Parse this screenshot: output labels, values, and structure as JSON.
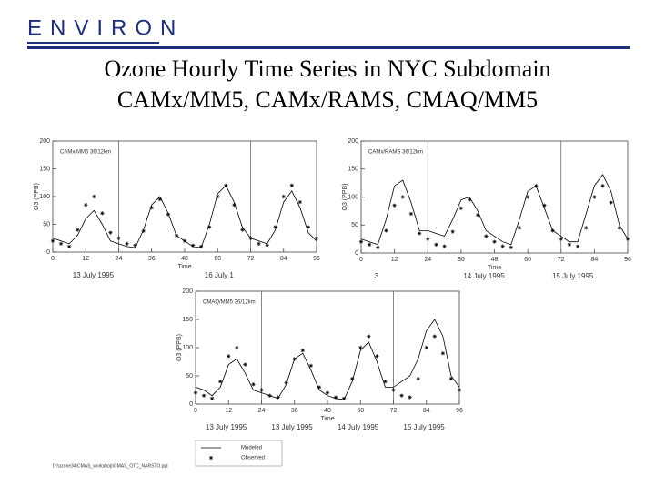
{
  "header": {
    "logo": "ENVIRON",
    "title": [
      "Ozone Hourly Time Series in NYC Subdomain",
      "CAMx/MM5, CAMx/RAMS, CMAQ/MM5"
    ]
  },
  "footer": "D:\\ozone34\\CMAS_workshop\\CMAS_OTC_NARSTO.ppt",
  "chart_data": [
    {
      "type": "line",
      "label": "CAMx/MM5 36/12km",
      "xlabel": "Time",
      "ylabel": "O3 (PPB)",
      "x": [
        0,
        3,
        6,
        9,
        12,
        15,
        18,
        21,
        24,
        27,
        30,
        33,
        36,
        39,
        42,
        45,
        48,
        51,
        54,
        57,
        60,
        63,
        66,
        69,
        72,
        75,
        78,
        81,
        84,
        87,
        90,
        93,
        96
      ],
      "series": [
        {
          "name": "Modeled",
          "color": "#000000",
          "values": [
            25,
            20,
            15,
            30,
            60,
            75,
            50,
            20,
            15,
            10,
            8,
            40,
            85,
            100,
            70,
            30,
            20,
            10,
            8,
            50,
            105,
            120,
            90,
            45,
            25,
            20,
            15,
            40,
            90,
            110,
            80,
            35,
            20
          ]
        },
        {
          "name": "Observed",
          "color": "#000000",
          "values": [
            20,
            15,
            10,
            40,
            85,
            100,
            70,
            35,
            25,
            15,
            12,
            38,
            80,
            95,
            68,
            30,
            20,
            12,
            10,
            45,
            100,
            120,
            85,
            40,
            25,
            15,
            12,
            45,
            100,
            120,
            90,
            45,
            25
          ]
        }
      ],
      "xlim": [
        0,
        96
      ],
      "xticks": [
        0,
        12,
        24,
        36,
        48,
        60,
        72,
        84,
        96
      ],
      "ylim": [
        0,
        200
      ],
      "yticks": [
        0,
        50,
        100,
        150,
        200
      ],
      "vlines": [
        24,
        72
      ],
      "date_labels": [
        "13 July 1995",
        "16 July 1"
      ]
    },
    {
      "type": "line",
      "label": "CAMx/RAMS 36/12km",
      "xlabel": "Time",
      "ylabel": "O3 (PPB)",
      "x": [
        0,
        3,
        6,
        9,
        12,
        15,
        18,
        21,
        24,
        27,
        30,
        33,
        36,
        39,
        42,
        45,
        48,
        51,
        54,
        57,
        60,
        63,
        66,
        69,
        72,
        75,
        78,
        81,
        84,
        87,
        90,
        93,
        96
      ],
      "series": [
        {
          "name": "Modeled",
          "color": "#000000",
          "values": [
            25,
            20,
            15,
            60,
            120,
            130,
            90,
            40,
            40,
            35,
            30,
            60,
            95,
            100,
            75,
            40,
            30,
            20,
            15,
            60,
            110,
            120,
            80,
            40,
            30,
            20,
            20,
            70,
            120,
            140,
            110,
            50,
            25
          ]
        },
        {
          "name": "Observed",
          "color": "#000000",
          "values": [
            20,
            15,
            10,
            40,
            85,
            100,
            70,
            35,
            25,
            15,
            12,
            38,
            80,
            95,
            68,
            30,
            20,
            12,
            10,
            45,
            100,
            120,
            85,
            40,
            25,
            15,
            12,
            45,
            100,
            120,
            90,
            45,
            25
          ]
        }
      ],
      "xlim": [
        0,
        96
      ],
      "xticks": [
        0,
        12,
        24,
        36,
        48,
        60,
        72,
        84,
        96
      ],
      "ylim": [
        0,
        200
      ],
      "yticks": [
        0,
        50,
        100,
        150,
        200
      ],
      "vlines": [
        24,
        72
      ],
      "date_labels": [
        "3",
        "14 July 1995",
        "15 July 1995"
      ]
    },
    {
      "type": "line",
      "label": "CMAQ/MM5 36/12km",
      "xlabel": "Time",
      "ylabel": "O3 (PPB)",
      "x": [
        0,
        3,
        6,
        9,
        12,
        15,
        18,
        21,
        24,
        27,
        30,
        33,
        36,
        39,
        42,
        45,
        48,
        51,
        54,
        57,
        60,
        63,
        66,
        69,
        72,
        75,
        78,
        81,
        84,
        87,
        90,
        93,
        96
      ],
      "series": [
        {
          "name": "Modeled",
          "color": "#000000",
          "values": [
            30,
            25,
            15,
            30,
            70,
            80,
            55,
            25,
            20,
            15,
            10,
            35,
            80,
            90,
            60,
            25,
            15,
            10,
            8,
            40,
            95,
            110,
            75,
            30,
            30,
            40,
            50,
            80,
            130,
            150,
            120,
            50,
            30
          ]
        },
        {
          "name": "Observed",
          "color": "#000000",
          "values": [
            20,
            15,
            10,
            40,
            85,
            100,
            70,
            35,
            25,
            15,
            12,
            38,
            80,
            95,
            68,
            30,
            20,
            12,
            10,
            45,
            100,
            120,
            85,
            40,
            25,
            15,
            12,
            45,
            100,
            120,
            90,
            45,
            25
          ]
        }
      ],
      "xlim": [
        0,
        96
      ],
      "xticks": [
        0,
        12,
        24,
        36,
        48,
        60,
        72,
        84,
        96
      ],
      "ylim": [
        0,
        200
      ],
      "yticks": [
        0,
        50,
        100,
        150,
        200
      ],
      "vlines": [
        24,
        72
      ],
      "date_labels": [
        "13 July 1995",
        "13 July 1995",
        "14 July 1995",
        "15 July 1995"
      ],
      "legend": true
    }
  ]
}
